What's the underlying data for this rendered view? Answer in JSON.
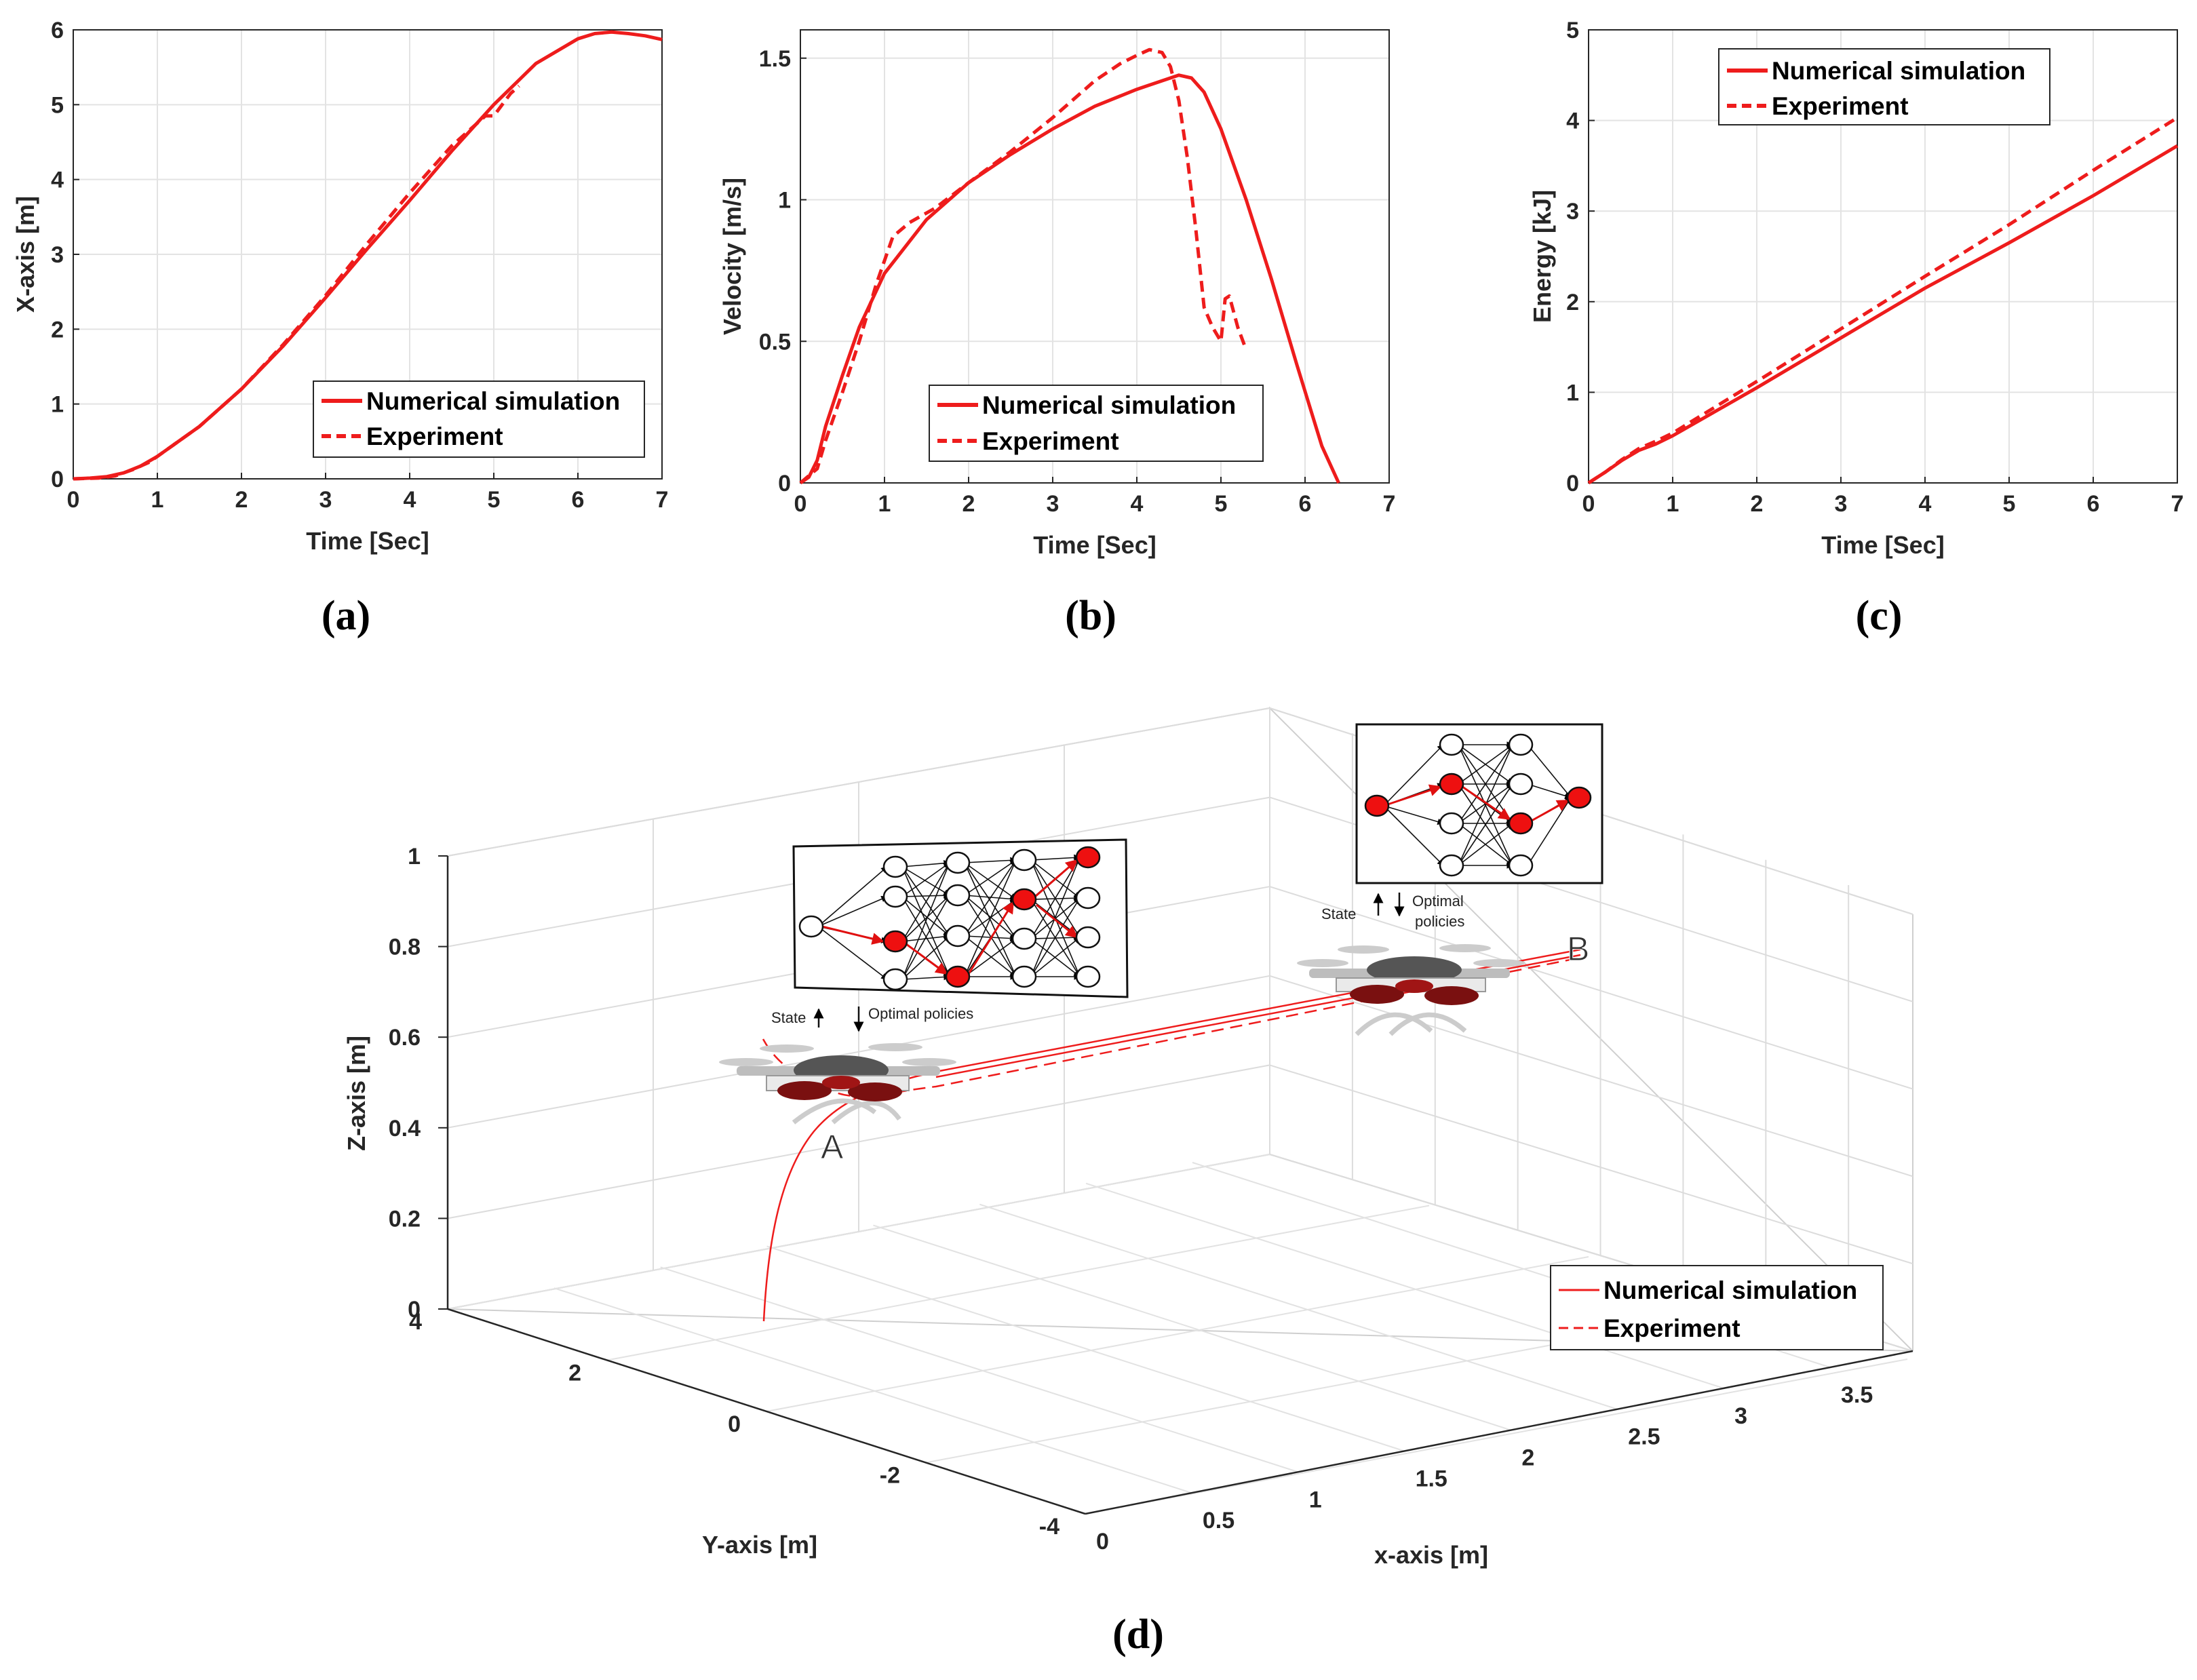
{
  "chart_data": [
    {
      "id": "a",
      "type": "line",
      "panel_label": "(a)",
      "xlabel": "Time [Sec]",
      "ylabel": "X-axis [m]",
      "xlim": [
        0,
        7
      ],
      "ylim": [
        0,
        6
      ],
      "xticks": [
        0,
        1,
        2,
        3,
        4,
        5,
        6,
        7
      ],
      "yticks": [
        0,
        1,
        2,
        3,
        4,
        5,
        6
      ],
      "grid": true,
      "legend_position": "bottom-right",
      "series": [
        {
          "name": "Numerical simulation",
          "style": "solid",
          "color": "#ee1c1c",
          "x": [
            0,
            0.2,
            0.4,
            0.6,
            0.8,
            1.0,
            1.5,
            2.0,
            2.5,
            3.0,
            3.5,
            4.0,
            4.5,
            5.0,
            5.5,
            6.0,
            6.2,
            6.4,
            6.6,
            6.8,
            7.0
          ],
          "y": [
            0,
            0.01,
            0.03,
            0.08,
            0.17,
            0.3,
            0.7,
            1.2,
            1.78,
            2.42,
            3.08,
            3.72,
            4.38,
            5.0,
            5.55,
            5.88,
            5.95,
            5.97,
            5.95,
            5.92,
            5.87
          ]
        },
        {
          "name": "Experiment",
          "style": "dashed",
          "color": "#ee1c1c",
          "x": [
            0,
            0.3,
            0.5,
            0.7,
            0.9,
            1.0,
            1.5,
            2.0,
            2.5,
            3.0,
            3.5,
            4.0,
            4.5,
            4.9,
            5.0,
            5.1,
            5.2,
            5.3
          ],
          "y": [
            0,
            0.01,
            0.04,
            0.12,
            0.22,
            0.3,
            0.7,
            1.2,
            1.8,
            2.45,
            3.15,
            3.82,
            4.45,
            4.85,
            4.85,
            5.0,
            5.15,
            5.25
          ]
        }
      ]
    },
    {
      "id": "b",
      "type": "line",
      "panel_label": "(b)",
      "xlabel": "Time [Sec]",
      "ylabel": "Velocity [m/s]",
      "xlim": [
        0,
        7
      ],
      "ylim": [
        0,
        1.6
      ],
      "xticks": [
        0,
        1,
        2,
        3,
        4,
        5,
        6,
        7
      ],
      "yticks": [
        0,
        0.5,
        1,
        1.5
      ],
      "grid": true,
      "legend_position": "bottom-right",
      "series": [
        {
          "name": "Numerical simulation",
          "style": "solid",
          "color": "#ee1c1c",
          "x": [
            0,
            0.1,
            0.2,
            0.3,
            0.5,
            0.7,
            1.0,
            1.5,
            2.0,
            2.5,
            3.0,
            3.5,
            4.0,
            4.3,
            4.5,
            4.65,
            4.8,
            5.0,
            5.3,
            5.6,
            5.9,
            6.2,
            6.4
          ],
          "y": [
            0,
            0.02,
            0.08,
            0.2,
            0.38,
            0.55,
            0.74,
            0.93,
            1.06,
            1.16,
            1.25,
            1.33,
            1.39,
            1.42,
            1.44,
            1.43,
            1.38,
            1.25,
            1.0,
            0.72,
            0.42,
            0.13,
            0.0
          ]
        },
        {
          "name": "Experiment",
          "style": "dashed",
          "color": "#ee1c1c",
          "x": [
            0,
            0.2,
            0.3,
            0.5,
            0.7,
            0.9,
            1.1,
            1.3,
            1.6,
            2.0,
            2.5,
            3.0,
            3.5,
            3.8,
            4.0,
            4.15,
            4.3,
            4.4,
            4.5,
            4.6,
            4.7,
            4.8,
            4.9,
            5.0,
            5.05,
            5.1,
            5.2,
            5.3
          ],
          "y": [
            0,
            0.05,
            0.15,
            0.32,
            0.5,
            0.7,
            0.87,
            0.92,
            0.97,
            1.06,
            1.17,
            1.29,
            1.42,
            1.48,
            1.51,
            1.53,
            1.52,
            1.47,
            1.35,
            1.15,
            0.9,
            0.62,
            0.55,
            0.5,
            0.65,
            0.66,
            0.55,
            0.47
          ]
        }
      ]
    },
    {
      "id": "c",
      "type": "line",
      "panel_label": "(c)",
      "xlabel": "Time [Sec]",
      "ylabel": "Energy [kJ]",
      "xlim": [
        0,
        7
      ],
      "ylim": [
        0,
        5
      ],
      "xticks": [
        0,
        1,
        2,
        3,
        4,
        5,
        6,
        7
      ],
      "yticks": [
        0,
        1,
        2,
        3,
        4,
        5
      ],
      "grid": true,
      "legend_position": "top-left",
      "series": [
        {
          "name": "Numerical simulation",
          "style": "solid",
          "color": "#ee1c1c",
          "x": [
            0,
            0.2,
            0.4,
            0.6,
            0.8,
            1.0,
            2.0,
            3.0,
            4.0,
            5.0,
            6.0,
            7.0
          ],
          "y": [
            0,
            0.12,
            0.25,
            0.36,
            0.43,
            0.52,
            1.05,
            1.6,
            2.15,
            2.65,
            3.17,
            3.72
          ]
        },
        {
          "name": "Experiment",
          "style": "dashed",
          "color": "#ee1c1c",
          "x": [
            0,
            0.2,
            0.4,
            0.6,
            0.8,
            1.0,
            2.0,
            3.0,
            4.0,
            5.0,
            6.0,
            7.0
          ],
          "y": [
            0,
            0.12,
            0.26,
            0.38,
            0.46,
            0.55,
            1.12,
            1.7,
            2.28,
            2.85,
            3.45,
            4.03
          ]
        }
      ]
    },
    {
      "id": "d",
      "type": "line",
      "panel_label": "(d)",
      "projection": "3d",
      "xlabel": "x-axis [m]",
      "ylabel": "Y-axis [m]",
      "zlabel": "Z-axis [m]",
      "xticks": [
        0,
        0.5,
        1,
        1.5,
        2,
        2.5,
        3,
        3.5
      ],
      "yticks": [
        4,
        2,
        0,
        -2,
        -4
      ],
      "zticks": [
        0,
        0.2,
        0.4,
        0.6,
        0.8,
        1
      ],
      "xlim": [
        0,
        3.5
      ],
      "ylim": [
        -4,
        4
      ],
      "zlim": [
        0,
        1
      ],
      "grid": true,
      "legend_position": "bottom-right",
      "point_labels": [
        "A",
        "B"
      ],
      "inset_labels": {
        "state": "State",
        "optimal_policies_1": "Optimal policies",
        "optimal_policies_2a": "Optimal",
        "optimal_policies_2b": "policies"
      },
      "series": [
        {
          "name": "Numerical simulation",
          "style": "solid",
          "color": "#ee1c1c"
        },
        {
          "name": "Experiment",
          "style": "dashed",
          "color": "#ee1c1c"
        }
      ]
    }
  ]
}
